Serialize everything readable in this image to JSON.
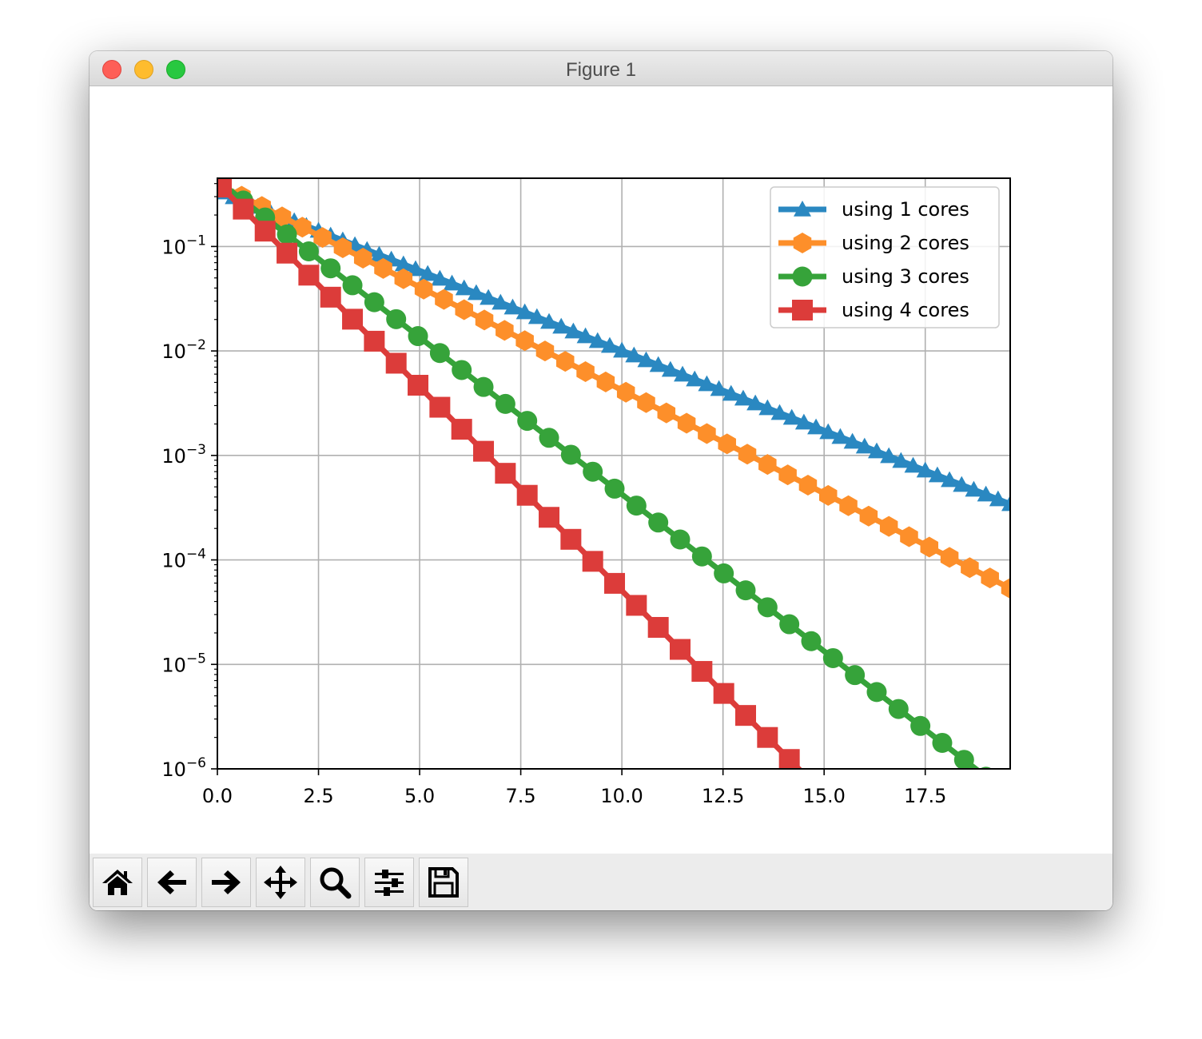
{
  "window": {
    "title": "Figure 1"
  },
  "toolbar": {
    "buttons": [
      {
        "name": "home",
        "icon": "home-icon"
      },
      {
        "name": "back",
        "icon": "arrow-left-icon"
      },
      {
        "name": "forward",
        "icon": "arrow-right-icon"
      },
      {
        "name": "pan",
        "icon": "move-icon"
      },
      {
        "name": "zoom",
        "icon": "magnifier-icon"
      },
      {
        "name": "configure-subplots",
        "icon": "sliders-icon"
      },
      {
        "name": "save",
        "icon": "floppy-disk-icon"
      }
    ]
  },
  "chart_data": {
    "type": "line",
    "title": "",
    "xlabel": "",
    "ylabel": "",
    "xlim": [
      0,
      19.6
    ],
    "ylim": [
      1e-06,
      0.45
    ],
    "yscale": "log",
    "grid": true,
    "legend_position": "top-right",
    "x_ticks": [
      "0.0",
      "2.5",
      "5.0",
      "7.5",
      "10.0",
      "12.5",
      "15.0",
      "17.5"
    ],
    "y_ticks": [
      {
        "base": "10",
        "exp": "−1"
      },
      {
        "base": "10",
        "exp": "−2"
      },
      {
        "base": "10",
        "exp": "−3"
      },
      {
        "base": "10",
        "exp": "−4"
      },
      {
        "base": "10",
        "exp": "−5"
      },
      {
        "base": "10",
        "exp": "−6"
      }
    ],
    "series": [
      {
        "name": "using 1 cores",
        "color": "#2a88c1",
        "marker": "triangle",
        "x_start": 0.1,
        "x_step": 0.3,
        "count": 66,
        "y_start": 0.33,
        "y_ratio": 0.8997
      },
      {
        "name": "using 2 cores",
        "color": "#fd8f2a",
        "marker": "hexagon",
        "x_start": 0.1,
        "x_step": 0.5,
        "count": 40,
        "y_start": 0.38,
        "y_ratio": 0.7966
      },
      {
        "name": "using 3 cores",
        "color": "#36a33a",
        "marker": "circle",
        "x_start": 0.1,
        "x_step": 0.54,
        "count": 36,
        "y_start": 0.4,
        "y_ratio": 0.6883
      },
      {
        "name": "using 4 cores",
        "color": "#dc3c3a",
        "marker": "square",
        "x_start": 0.1,
        "x_step": 0.54,
        "count": 28,
        "y_start": 0.37,
        "y_ratio": 0.6156
      }
    ]
  }
}
